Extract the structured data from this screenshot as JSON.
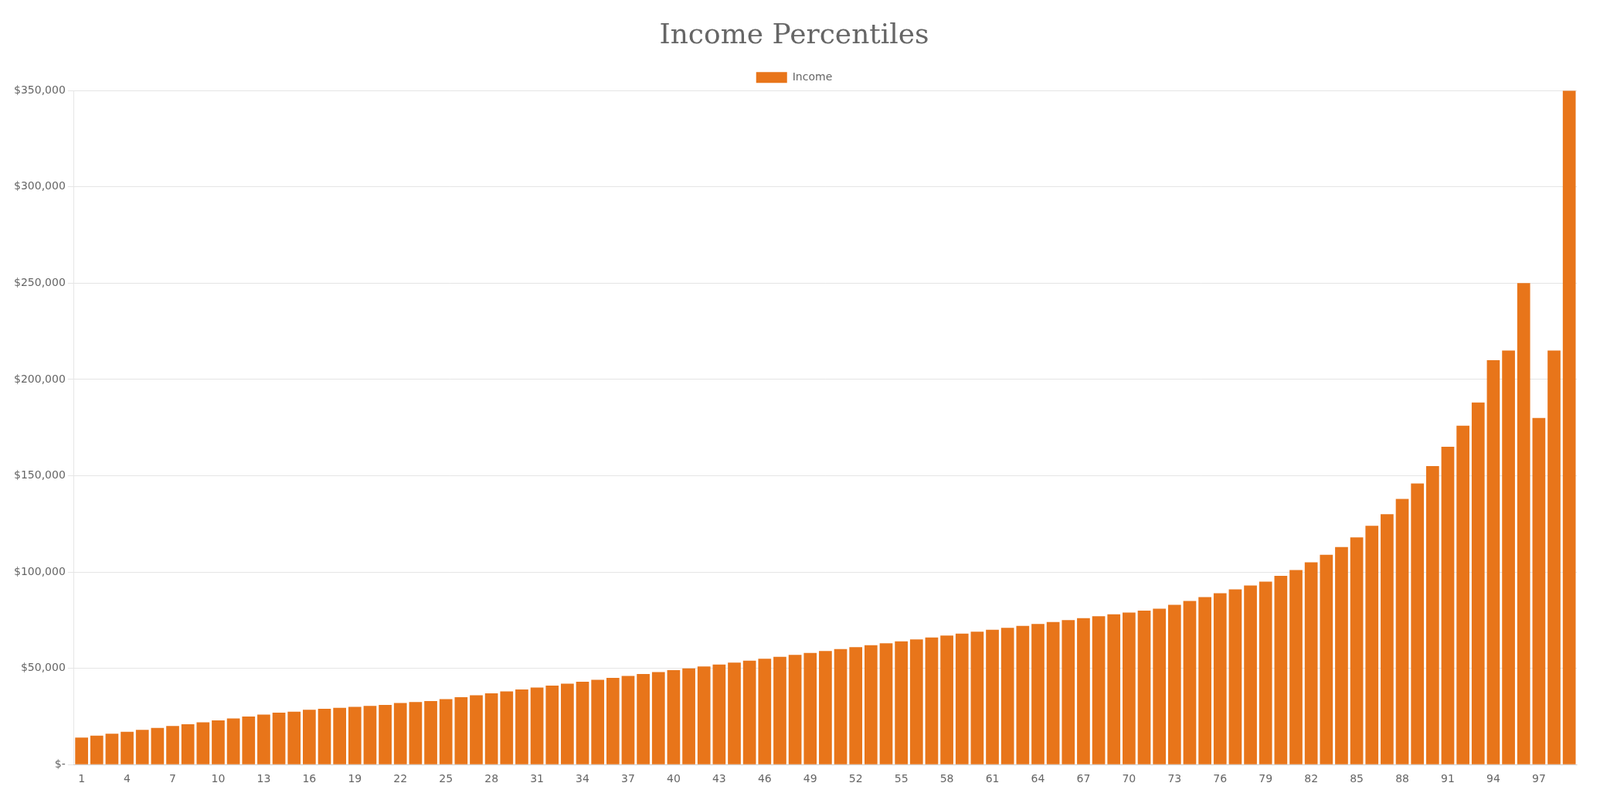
{
  "chart_data": {
    "type": "bar",
    "title": "Income Percentiles",
    "categories": [
      "1",
      null,
      null,
      "4",
      null,
      null,
      "7",
      null,
      null,
      "10",
      null,
      null,
      "13",
      null,
      null,
      "16",
      null,
      null,
      "19",
      null,
      null,
      "22",
      null,
      null,
      "25",
      null,
      null,
      "28",
      null,
      null,
      "31",
      null,
      null,
      "34",
      null,
      null,
      "37",
      null,
      null,
      "40",
      null,
      null,
      "43",
      null,
      null,
      "46",
      null,
      null,
      "49",
      null,
      null,
      "52",
      null,
      null,
      "55",
      null,
      null,
      "58",
      null,
      null,
      "61",
      null,
      null,
      "64",
      null,
      null,
      "67",
      null,
      null,
      "70",
      null,
      null,
      "73",
      null,
      null,
      "76",
      null,
      null,
      "79",
      null,
      null,
      "82",
      null,
      null,
      "85",
      null,
      null,
      "88",
      null,
      null,
      "91",
      null,
      null,
      "94",
      null,
      null,
      "97",
      null,
      null
    ],
    "series": [
      {
        "name": "Income",
        "color": "#E8751A",
        "values": [
          14000,
          15000,
          16000,
          17000,
          18000,
          19000,
          20000,
          21000,
          22000,
          23000,
          24000,
          25000,
          26000,
          27000,
          27500,
          28500,
          29000,
          29500,
          30000,
          30500,
          31000,
          32000,
          32500,
          33000,
          34000,
          35000,
          36000,
          37000,
          38000,
          39000,
          40000,
          41000,
          42000,
          43000,
          44000,
          45000,
          46000,
          47000,
          48000,
          49000,
          50000,
          51000,
          52000,
          53000,
          54000,
          55000,
          56000,
          57000,
          58000,
          59000,
          60000,
          61000,
          62000,
          63000,
          64000,
          65000,
          66000,
          67000,
          68000,
          69000,
          70000,
          71000,
          72000,
          73000,
          74000,
          75000,
          76000,
          77000,
          78000,
          79000,
          80000,
          81000,
          83000,
          85000,
          87000,
          89000,
          91000,
          93000,
          95000,
          98000,
          101000,
          105000,
          109000,
          113000,
          118000,
          124000,
          130000,
          138000,
          146000,
          155000,
          165000,
          176000,
          188000,
          210000,
          215000,
          250000,
          180000,
          215000,
          350000
        ]
      }
    ],
    "ylim": [
      0,
      350000
    ],
    "yticks": [
      {
        "value": 0,
        "label": "$-"
      },
      {
        "value": 50000,
        "label": "$50,000"
      },
      {
        "value": 100000,
        "label": "$100,000"
      },
      {
        "value": 150000,
        "label": "$150,000"
      },
      {
        "value": 200000,
        "label": "$200,000"
      },
      {
        "value": 250000,
        "label": "$250,000"
      },
      {
        "value": 300000,
        "label": "$300,000"
      },
      {
        "value": 350000,
        "label": "$350,000"
      }
    ],
    "grid": true,
    "legend": "top"
  }
}
